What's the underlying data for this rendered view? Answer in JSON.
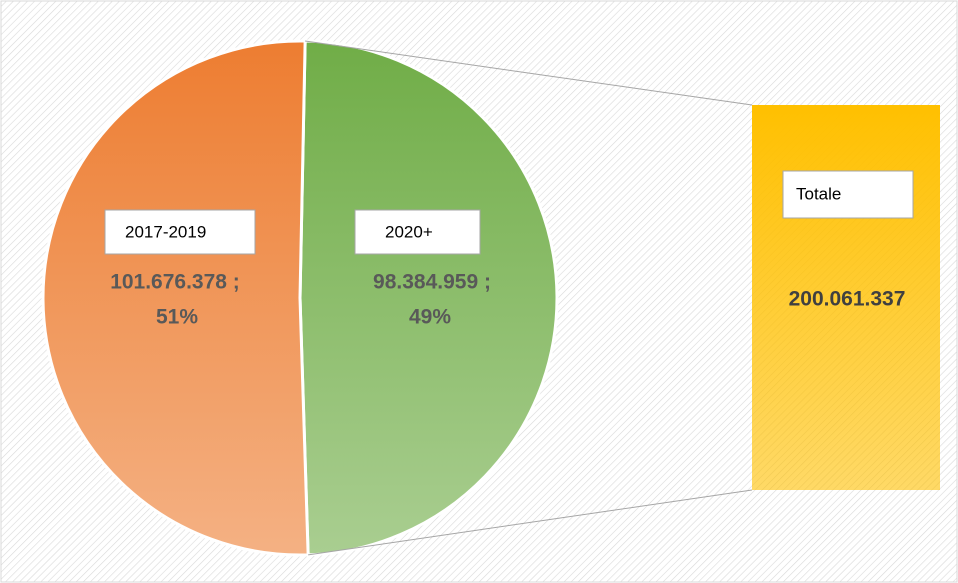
{
  "chart_data": {
    "type": "pie",
    "categories": [
      "2017-2019",
      "2020+"
    ],
    "values": [
      101676378,
      98384959
    ],
    "value_labels": [
      "101.676.378 ;",
      "98.384.959 ;"
    ],
    "percentages": [
      51,
      49
    ],
    "percentage_labels": [
      "51%",
      "49%"
    ],
    "colors": [
      "#ed7d31",
      "#70ad47"
    ],
    "total": {
      "name": "Totale",
      "value": 200061337,
      "value_label": "200.061.337",
      "color": "#ffc000"
    }
  }
}
